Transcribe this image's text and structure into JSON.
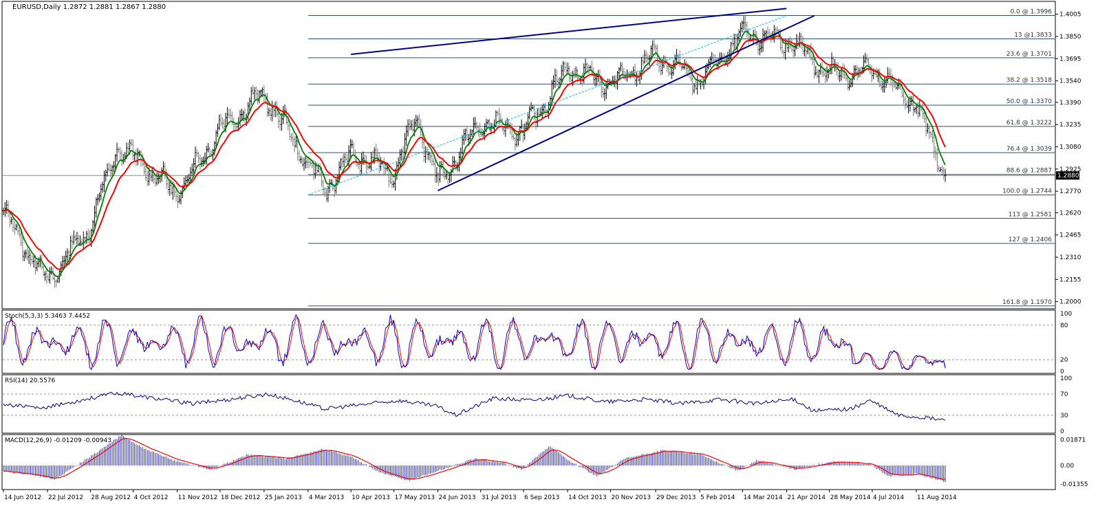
{
  "main_header": "EURUSD,Daily  1.2872 1.2881 1.2867 1.2880",
  "stoch_header": "Stoch(5,3,3) 5.3463 7.4452",
  "rsi_header": "RSI(14) 20.5576",
  "macd_header": "MACD(12,26,9) -0.01209 -0.00943",
  "current_price": "1.2880",
  "colors": {
    "bars": "#000000",
    "fast_ma": "#008000",
    "slow_ma": "#ff0000",
    "trendlines": "#00008b",
    "fib": "#2f4f6f",
    "stoch_k": "#0000cc",
    "stoch_d": "#ff0000",
    "rsi": "#000080",
    "macd_hist": "#3333aa",
    "macd_signal": "#ff0000",
    "label": "#333333"
  },
  "chart_data": [
    {
      "type": "ohlc",
      "symbol": "EURUSD",
      "timeframe": "Daily",
      "y_range": [
        1.196,
        1.4085
      ],
      "y_ticks": [
        "1.4005",
        "1.3850",
        "1.3695",
        "1.3540",
        "1.3390",
        "1.3235",
        "1.3080",
        "1.2925",
        "1.2770",
        "1.2620",
        "1.2465",
        "1.2310",
        "1.2155",
        "1.2000"
      ],
      "x_ticks": [
        "14 Jun 2012",
        "22 Jul 2012",
        "28 Aug 2012",
        "4 Oct 2012",
        "11 Nov 2012",
        "18 Dec 2012",
        "25 Jan 2013",
        "4 Mar 2013",
        "10 Apr 2013",
        "17 May 2013",
        "24 Jun 2013",
        "31 Jul 2013",
        "6 Sep 2013",
        "14 Oct 2013",
        "20 Nov 2013",
        "29 Dec 2013",
        "5 Feb 2014",
        "14 Mar 2014",
        "21 Apr 2014",
        "28 May 2014",
        "4 Jul 2014",
        "11 Aug 2014"
      ],
      "close_path": [
        [
          "14 Jun 2012",
          1.262
        ],
        [
          "22 Jul 2012",
          1.214
        ],
        [
          "28 Aug 2012",
          1.253
        ],
        [
          "20 Sep 2012",
          1.307
        ],
        [
          "4 Oct 2012",
          1.301
        ],
        [
          "11 Nov 2012",
          1.275
        ],
        [
          "18 Dec 2012",
          1.321
        ],
        [
          "25 Jan 2013",
          1.345
        ],
        [
          "4 Mar 2013",
          1.296
        ],
        [
          "20 Mar 2013",
          1.278
        ],
        [
          "10 Apr 2013",
          1.303
        ],
        [
          "17 May 2013",
          1.29
        ],
        [
          "5 Jun 2013",
          1.329
        ],
        [
          "24 Jun 2013",
          1.283
        ],
        [
          "31 Jul 2013",
          1.325
        ],
        [
          "6 Sep 2013",
          1.318
        ],
        [
          "14 Oct 2013",
          1.363
        ],
        [
          "20 Nov 2013",
          1.352
        ],
        [
          "29 Dec 2013",
          1.371
        ],
        [
          "5 Feb 2014",
          1.354
        ],
        [
          "14 Mar 2014",
          1.386
        ],
        [
          "21 Apr 2014",
          1.382
        ],
        [
          "28 May 2014",
          1.359
        ],
        [
          "4 Jul 2014",
          1.361
        ],
        [
          "11 Aug 2014",
          1.337
        ],
        [
          "5 Sep 2014",
          1.288
        ]
      ],
      "fast_ma_label": "",
      "slow_ma_label": "",
      "trendlines": [
        {
          "from": [
            "10 Apr 2013",
            1.3725
          ],
          "to": [
            "21 Apr 2014",
            1.4045
          ]
        },
        {
          "from": [
            "24 Jun 2013",
            1.2775
          ],
          "to": [
            "15 May 2014",
            1.3995
          ]
        },
        {
          "from": [
            "4 Mar 2013",
            1.2745
          ],
          "to": [
            "21 Apr 2014",
            1.3996
          ],
          "style": "dashed"
        }
      ],
      "fib_levels": [
        {
          "label": "0.0 @ 1.3996",
          "value": 1.3996
        },
        {
          "label": "13 @1.3833",
          "value": 1.3833
        },
        {
          "label": "23.6 @ 1.3701",
          "value": 1.3701
        },
        {
          "label": "38.2 @ 1.3518",
          "value": 1.3518
        },
        {
          "label": "50.0 @ 1.3370",
          "value": 1.337
        },
        {
          "label": "61.8 @ 1.3222",
          "value": 1.3222
        },
        {
          "label": "76.4 @ 1.3039",
          "value": 1.3039
        },
        {
          "label": "88.6 @ 1.2887",
          "value": 1.2887
        },
        {
          "label": "100.0 @ 1.2744",
          "value": 1.2744
        },
        {
          "label": "113 @ 1.2581",
          "value": 1.2581
        },
        {
          "label": "127 @ 1.2406",
          "value": 1.2406
        },
        {
          "label": "161.8 @ 1.1970",
          "value": 1.197
        }
      ],
      "last_price": 1.288
    },
    {
      "type": "line",
      "name": "Stoch(5,3,3)",
      "y_range": [
        0,
        100
      ],
      "y_ticks": [
        "100",
        "80",
        "20",
        "0"
      ],
      "levels": [
        80,
        20
      ],
      "last": {
        "k": 5.3463,
        "d": 7.4452
      }
    },
    {
      "type": "line",
      "name": "RSI(14)",
      "y_range": [
        0,
        100
      ],
      "y_ticks": [
        "100",
        "70",
        "30",
        "0"
      ],
      "levels": [
        70,
        30
      ],
      "path": [
        [
          0,
          52
        ],
        [
          0.04,
          42
        ],
        [
          0.08,
          58
        ],
        [
          0.12,
          72
        ],
        [
          0.16,
          62
        ],
        [
          0.2,
          52
        ],
        [
          0.24,
          60
        ],
        [
          0.28,
          70
        ],
        [
          0.31,
          58
        ],
        [
          0.34,
          42
        ],
        [
          0.38,
          50
        ],
        [
          0.42,
          58
        ],
        [
          0.46,
          47
        ],
        [
          0.48,
          30
        ],
        [
          0.52,
          62
        ],
        [
          0.56,
          58
        ],
        [
          0.6,
          67
        ],
        [
          0.64,
          55
        ],
        [
          0.68,
          60
        ],
        [
          0.72,
          52
        ],
        [
          0.76,
          60
        ],
        [
          0.8,
          52
        ],
        [
          0.84,
          60
        ],
        [
          0.86,
          38
        ],
        [
          0.9,
          42
        ],
        [
          0.92,
          58
        ],
        [
          0.95,
          30
        ],
        [
          0.98,
          25
        ],
        [
          1,
          20.5576
        ]
      ],
      "last": 20.5576
    },
    {
      "type": "bar",
      "name": "MACD(12,26,9)",
      "y_range": [
        -0.0165,
        0.0205
      ],
      "y_ticks": [
        "0.01871",
        "0.00",
        "-0.01355"
      ],
      "hist_path": [
        [
          0,
          -0.004
        ],
        [
          0.03,
          -0.007
        ],
        [
          0.055,
          -0.01
        ],
        [
          0.08,
          0.001
        ],
        [
          0.1,
          0.01
        ],
        [
          0.125,
          0.022
        ],
        [
          0.15,
          0.012
        ],
        [
          0.18,
          0.004
        ],
        [
          0.22,
          -0.003
        ],
        [
          0.26,
          0.008
        ],
        [
          0.3,
          0.005
        ],
        [
          0.34,
          0.012
        ],
        [
          0.37,
          0.006
        ],
        [
          0.4,
          -0.005
        ],
        [
          0.43,
          -0.011
        ],
        [
          0.47,
          -0.002
        ],
        [
          0.5,
          0.005
        ],
        [
          0.53,
          0.002
        ],
        [
          0.55,
          -0.003
        ],
        [
          0.58,
          0.014
        ],
        [
          0.6,
          0.004
        ],
        [
          0.63,
          -0.008
        ],
        [
          0.66,
          0.005
        ],
        [
          0.7,
          0.011
        ],
        [
          0.74,
          0.008
        ],
        [
          0.78,
          -0.004
        ],
        [
          0.8,
          0.004
        ],
        [
          0.84,
          -0.003
        ],
        [
          0.88,
          0.003
        ],
        [
          0.92,
          0.001
        ],
        [
          0.94,
          -0.008
        ],
        [
          0.97,
          -0.006
        ],
        [
          1,
          -0.01209
        ]
      ],
      "signal_last": -0.00943,
      "last": -0.01209
    }
  ]
}
